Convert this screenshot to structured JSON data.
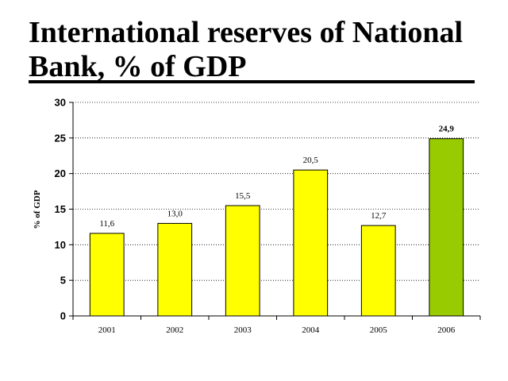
{
  "slide": {
    "title_line1": "International reserves of National",
    "title_line2": "Bank, % of GDP"
  },
  "chart_data": {
    "type": "bar",
    "title": "International reserves of National Bank, % of GDP",
    "xlabel": "",
    "ylabel": "%  of GDP",
    "categories": [
      "2001",
      "2002",
      "2003",
      "2004",
      "2005",
      "2006"
    ],
    "values": [
      11.6,
      13.0,
      15.5,
      20.5,
      12.7,
      24.9
    ],
    "data_labels": [
      "11,6",
      "13,0",
      "15,5",
      "20,5",
      "12,7",
      "24,9"
    ],
    "ylim": [
      0,
      30
    ],
    "yticks": [
      0,
      5,
      10,
      15,
      20,
      25,
      30
    ],
    "grid": true,
    "legend": "none",
    "colors": {
      "default_bar": "#FFFF00",
      "highlight_bar": "#99CC00",
      "bar_border": "#000000",
      "gridline": "#000000"
    },
    "highlight_index": 5
  }
}
